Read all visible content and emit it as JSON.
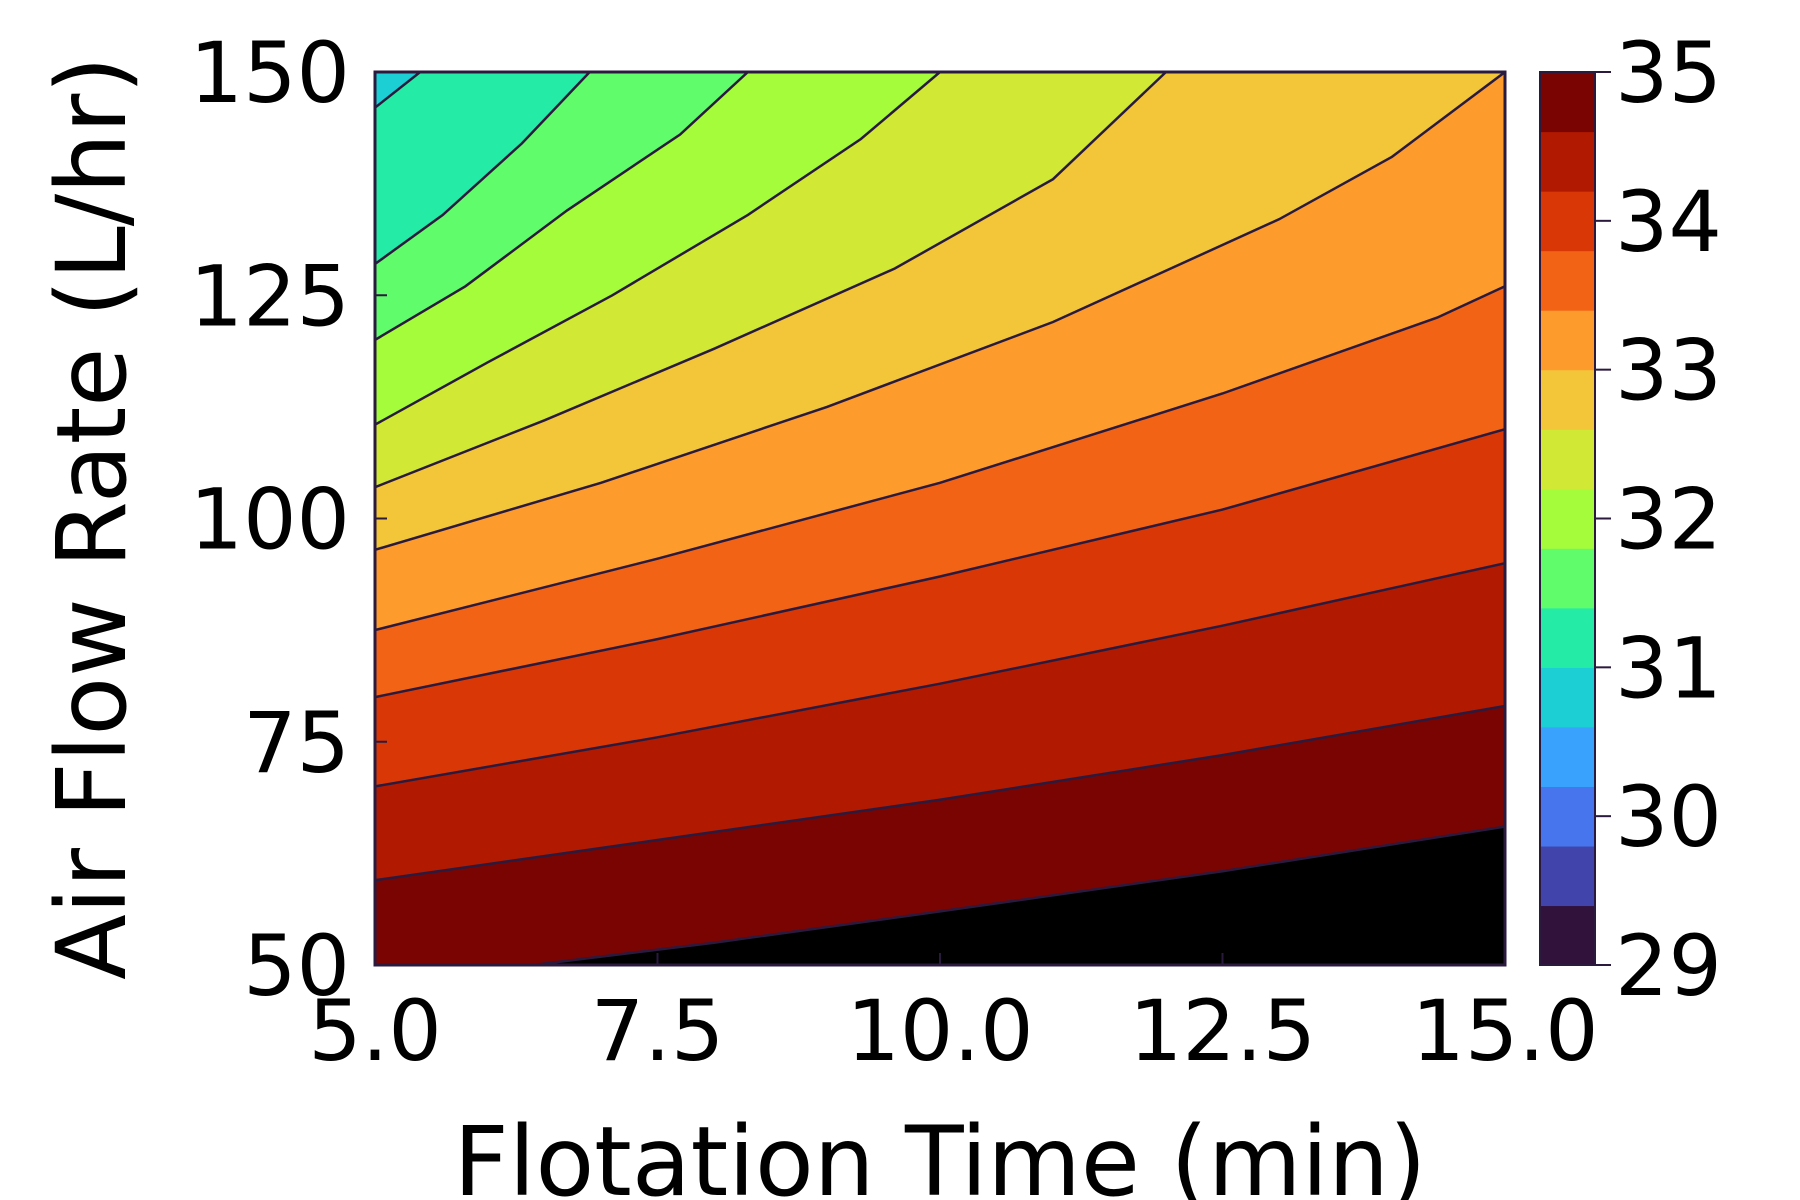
{
  "chart_data": {
    "type": "contour",
    "xlabel": "Flotation Time (min)",
    "ylabel": "Air Flow Rate (L/hr)",
    "xlim": [
      5.0,
      15.0
    ],
    "ylim": [
      50,
      150
    ],
    "x_ticks": [
      "5.0",
      "7.5",
      "10.0",
      "12.5",
      "15.0"
    ],
    "y_ticks": [
      "50",
      "75",
      "100",
      "125",
      "150"
    ],
    "colorbar": {
      "range": [
        29,
        35
      ],
      "tick_labels": [
        "29",
        "30",
        "31",
        "32",
        "33",
        "34",
        "35"
      ],
      "level_step": 0.375,
      "level_colors": [
        "#30123b",
        "#4145ab",
        "#4675ed",
        "#39a2fc",
        "#1bcfd4",
        "#24eca6",
        "#61fc6c",
        "#a4fc3b",
        "#d1e834",
        "#f3c63a",
        "#fe9b2d",
        "#f36315",
        "#d93806",
        "#b11901",
        "#7a0402"
      ]
    },
    "contour_lines": [
      {
        "level": 30.875,
        "points": [
          [
            5.0,
            146.0
          ],
          [
            5.4,
            150.0
          ]
        ]
      },
      {
        "level": 31.25,
        "points": [
          [
            5.0,
            128.5
          ],
          [
            5.6,
            134.0
          ],
          [
            6.3,
            142.0
          ],
          [
            6.9,
            150.0
          ]
        ]
      },
      {
        "level": 31.625,
        "points": [
          [
            5.0,
            120.0
          ],
          [
            5.8,
            126.0
          ],
          [
            6.7,
            134.5
          ],
          [
            7.7,
            143.0
          ],
          [
            8.3,
            150.0
          ]
        ]
      },
      {
        "level": 32.0,
        "points": [
          [
            5.0,
            110.5
          ],
          [
            6.0,
            117.5
          ],
          [
            7.1,
            125.0
          ],
          [
            8.3,
            134.0
          ],
          [
            9.3,
            142.5
          ],
          [
            10.0,
            150.0
          ]
        ]
      },
      {
        "level": 32.375,
        "points": [
          [
            5.0,
            103.5
          ],
          [
            6.5,
            111.0
          ],
          [
            8.0,
            119.0
          ],
          [
            9.6,
            128.0
          ],
          [
            11.0,
            138.0
          ],
          [
            12.0,
            150.0
          ]
        ]
      },
      {
        "level": 32.75,
        "points": [
          [
            5.0,
            96.5
          ],
          [
            7.0,
            104.0
          ],
          [
            9.0,
            112.5
          ],
          [
            11.0,
            122.0
          ],
          [
            13.0,
            133.5
          ],
          [
            14.0,
            140.5
          ],
          [
            15.0,
            150.0
          ]
        ]
      },
      {
        "level": 33.125,
        "points": [
          [
            5.0,
            87.5
          ],
          [
            7.5,
            95.5
          ],
          [
            10.0,
            104.0
          ],
          [
            12.5,
            114.0
          ],
          [
            14.4,
            122.5
          ],
          [
            15.0,
            126.0
          ]
        ]
      },
      {
        "level": 33.5,
        "points": [
          [
            5.0,
            80.0
          ],
          [
            7.5,
            86.5
          ],
          [
            10.0,
            93.5
          ],
          [
            12.5,
            101.0
          ],
          [
            15.0,
            110.0
          ]
        ]
      },
      {
        "level": 33.875,
        "points": [
          [
            5.0,
            70.0
          ],
          [
            7.5,
            75.5
          ],
          [
            10.0,
            81.5
          ],
          [
            12.5,
            88.0
          ],
          [
            15.0,
            95.0
          ]
        ]
      },
      {
        "level": 34.25,
        "points": [
          [
            5.0,
            59.5
          ],
          [
            7.5,
            64.0
          ],
          [
            10.0,
            68.5
          ],
          [
            12.5,
            73.5
          ],
          [
            15.0,
            79.0
          ]
        ]
      },
      {
        "level": 34.625,
        "points": [
          [
            6.4,
            50.0
          ],
          [
            8.0,
            52.5
          ],
          [
            10.0,
            56.0
          ],
          [
            12.5,
            60.5
          ],
          [
            15.0,
            65.5
          ]
        ]
      }
    ]
  }
}
